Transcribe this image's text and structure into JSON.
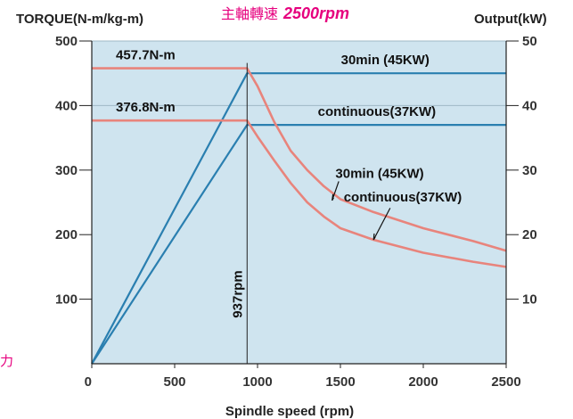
{
  "header": {
    "title_cjk": "主軸轉速",
    "title_speed": "2500rpm",
    "side_char": "力"
  },
  "chart_data": {
    "type": "line",
    "xlabel": "Spindle speed (rpm)",
    "ylabel_left": "TORQUE(N-m/kg-m)",
    "ylabel_right": "Output(kW)",
    "xlim": [
      0,
      2500
    ],
    "ylim_left": [
      0,
      500
    ],
    "ylim_right": [
      0,
      50
    ],
    "x_ticks": [
      "0",
      "500",
      "1000",
      "1500",
      "2000",
      "2500"
    ],
    "y_left_ticks": [
      "100",
      "200",
      "300",
      "400",
      "500"
    ],
    "y_right_ticks": [
      "10",
      "20",
      "30",
      "40",
      "50"
    ],
    "grid": "horizontal at 400 and 500 torque",
    "background_color": "#cfe4ef",
    "torque_color": "#e8847c",
    "power_color": "#2a7fb0",
    "series": [
      {
        "name": "30min (45KW)",
        "axis": "left",
        "kind": "torque",
        "x": [
          0,
          937,
          1000,
          1100,
          1200,
          1300,
          1400,
          1500,
          1700,
          2000,
          2300,
          2500
        ],
        "y": [
          457.7,
          457.7,
          430,
          375,
          330,
          300,
          275,
          255,
          235,
          210,
          190,
          175
        ]
      },
      {
        "name": "continuous(37KW)",
        "axis": "left",
        "kind": "torque",
        "x": [
          0,
          937,
          1000,
          1100,
          1200,
          1300,
          1400,
          1500,
          1700,
          2000,
          2300,
          2500
        ],
        "y": [
          376.8,
          376.8,
          352,
          315,
          280,
          250,
          228,
          210,
          192,
          172,
          158,
          150
        ]
      },
      {
        "name": "30min (45KW)",
        "axis": "right",
        "kind": "power",
        "x": [
          0,
          937,
          2500
        ],
        "y": [
          0,
          45,
          45
        ]
      },
      {
        "name": "continuous(37KW)",
        "axis": "right",
        "kind": "power",
        "x": [
          0,
          937,
          2500
        ],
        "y": [
          0,
          37,
          37
        ]
      }
    ],
    "annotations": {
      "torque_30min_value": "457.7N-m",
      "torque_cont_value": "376.8N-m",
      "power_30min_label": "30min (45KW)",
      "power_cont_label": "continuous(37KW)",
      "torque_30min_label": "30min (45KW)",
      "torque_cont_label": "continuous(37KW)",
      "base_speed_label": "937rpm",
      "base_speed": 937
    }
  }
}
